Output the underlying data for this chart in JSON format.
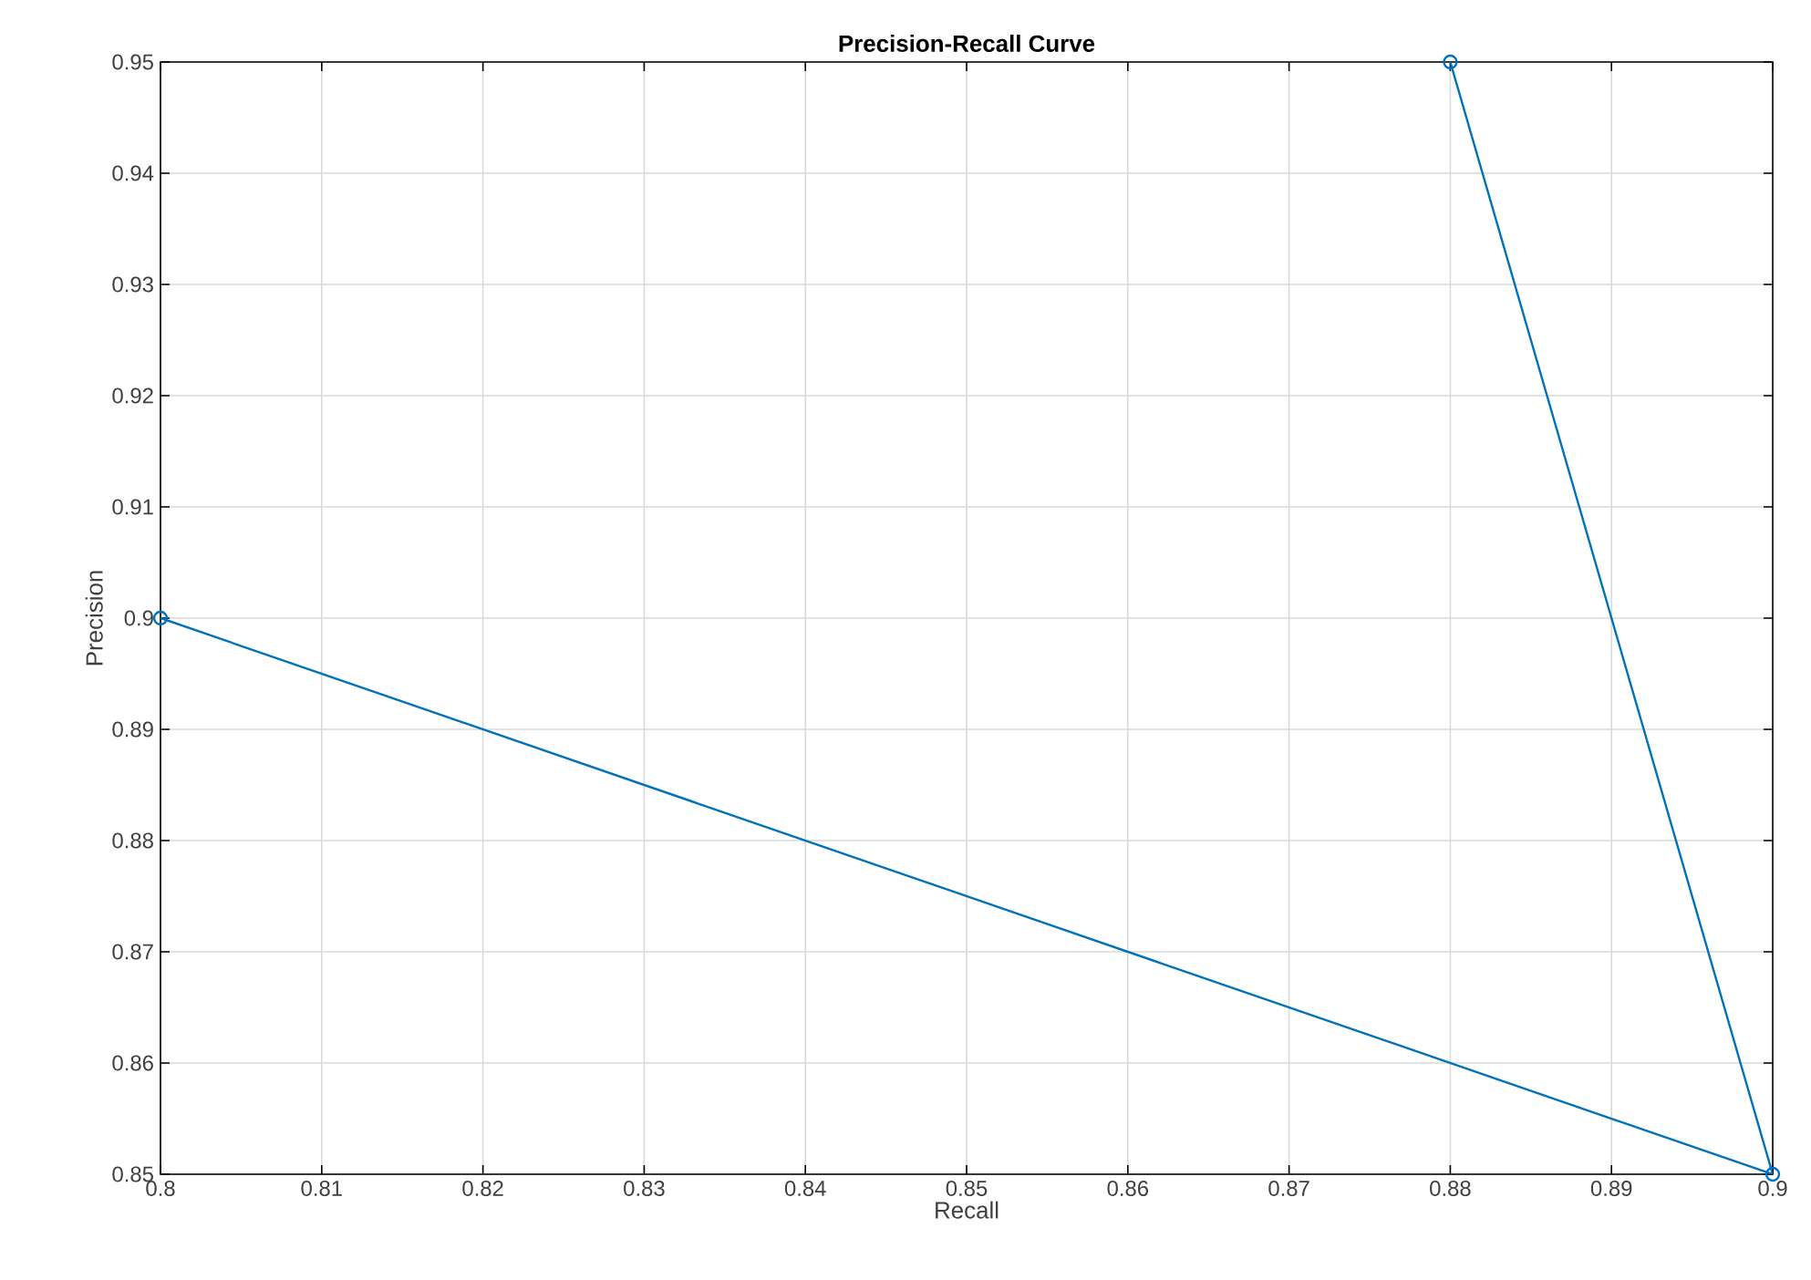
{
  "chart_data": {
    "type": "line",
    "title": "Precision-Recall Curve",
    "xlabel": "Recall",
    "ylabel": "Precision",
    "series": [
      {
        "color": "#0072bd",
        "x": [
          0.8,
          0.9,
          0.88
        ],
        "values": [
          0.9,
          0.85,
          0.95
        ]
      }
    ],
    "xlim": [
      0.8,
      0.9
    ],
    "ylim": [
      0.85,
      0.95
    ],
    "xticks": [
      0.8,
      0.81,
      0.82,
      0.83,
      0.84,
      0.85,
      0.86,
      0.87,
      0.88,
      0.89,
      0.9
    ],
    "yticks": [
      0.85,
      0.86,
      0.87,
      0.88,
      0.89,
      0.9,
      0.91,
      0.92,
      0.93,
      0.94,
      0.95
    ],
    "grid": true,
    "marker": "circle",
    "line_style": "solid"
  }
}
